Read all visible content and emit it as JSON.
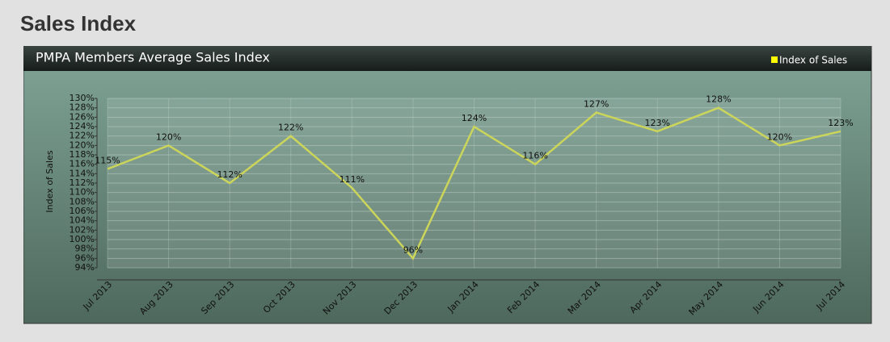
{
  "page_title": "Sales Index",
  "chart_data": {
    "type": "line",
    "title": "PMPA Members Average Sales Index",
    "y_label": "Index of Sales",
    "categories": [
      "Jul 2013",
      "Aug 2013",
      "Sep 2013",
      "Oct 2013",
      "Nov 2013",
      "Dec 2013",
      "Jan 2014",
      "Feb 2014",
      "Mar 2014",
      "Apr 2014",
      "May 2014",
      "Jun 2014",
      "Jul 2014"
    ],
    "series": [
      {
        "name": "Index of Sales",
        "color": "#cbd55a",
        "legend_color": "#ffff00",
        "values": [
          115,
          120,
          112,
          122,
          111,
          96,
          124,
          116,
          127,
          123,
          128,
          120,
          123
        ],
        "value_labels": [
          "115%",
          "120%",
          "112%",
          "122%",
          "111%",
          "96%",
          "124%",
          "116%",
          "127%",
          "123%",
          "128%",
          "120%",
          "123%"
        ]
      }
    ],
    "ylim": [
      94,
      130
    ],
    "yticks": [
      {
        "value": 94,
        "label": "94%"
      },
      {
        "value": 96,
        "label": "96%"
      },
      {
        "value": 98,
        "label": "98%"
      },
      {
        "value": 100,
        "label": "100%"
      },
      {
        "value": 102,
        "label": "102%"
      },
      {
        "value": 104,
        "label": "104%"
      },
      {
        "value": 106,
        "label": "106%"
      },
      {
        "value": 108,
        "label": "108%"
      },
      {
        "value": 110,
        "label": "110%"
      },
      {
        "value": 112,
        "label": "112%"
      },
      {
        "value": 114,
        "label": "114%"
      },
      {
        "value": 116,
        "label": "116%"
      },
      {
        "value": 118,
        "label": "118%"
      },
      {
        "value": 120,
        "label": "120%"
      },
      {
        "value": 122,
        "label": "122%"
      },
      {
        "value": 124,
        "label": "124%"
      },
      {
        "value": 126,
        "label": "126%"
      },
      {
        "value": 128,
        "label": "128%"
      },
      {
        "value": 130,
        "label": "130%"
      }
    ],
    "grid": true,
    "legend": "top-right"
  }
}
